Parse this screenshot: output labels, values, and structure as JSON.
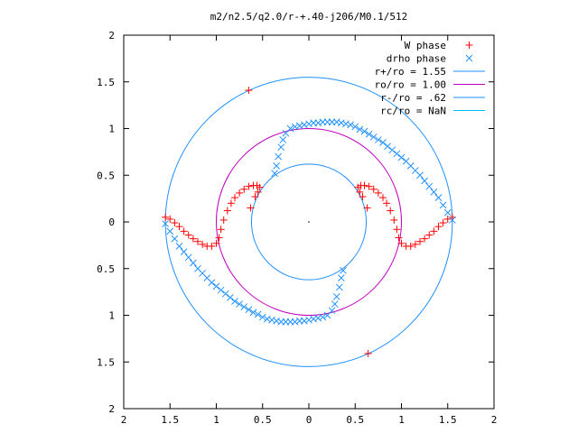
{
  "chart_data": {
    "type": "scatter",
    "title": "m2/n2.5/q2.0/r-+.40-j206/M0.1/512",
    "xlabel": "",
    "ylabel": "",
    "xlim": [
      -2,
      2
    ],
    "ylim": [
      -2,
      2
    ],
    "grid": false,
    "legend_position": "top-right",
    "x_tick_labels": [
      "2",
      "1.5",
      "1",
      "0.5",
      "0",
      "0.5",
      "1",
      "1.5",
      "2"
    ],
    "y_tick_labels": [
      "2",
      "1.5",
      "1",
      "0.5",
      "0",
      "0.5",
      "1",
      "1.5",
      "2"
    ],
    "series": [
      {
        "name": "W phase",
        "marker": "plus",
        "color": "#ff0000",
        "points": [
          [
            -1.55,
            0.05
          ],
          [
            -1.5,
            0.03
          ],
          [
            -1.45,
            -0.01
          ],
          [
            -1.4,
            -0.05
          ],
          [
            -1.35,
            -0.1
          ],
          [
            -1.3,
            -0.14
          ],
          [
            -1.25,
            -0.18
          ],
          [
            -1.2,
            -0.21
          ],
          [
            -1.15,
            -0.24
          ],
          [
            -1.1,
            -0.26
          ],
          [
            -1.05,
            -0.26
          ],
          [
            -1.0,
            -0.23
          ],
          [
            -0.97,
            -0.17
          ],
          [
            -0.95,
            -0.08
          ],
          [
            -0.92,
            0.02
          ],
          [
            -0.88,
            0.12
          ],
          [
            -0.84,
            0.2
          ],
          [
            -0.8,
            0.26
          ],
          [
            -0.75,
            0.31
          ],
          [
            -0.7,
            0.35
          ],
          [
            -0.65,
            0.38
          ],
          [
            -0.6,
            0.39
          ],
          [
            -0.56,
            0.39
          ],
          [
            -0.53,
            0.37
          ],
          [
            -0.55,
            0.32
          ],
          [
            -0.58,
            0.27
          ],
          [
            -0.63,
            0.15
          ],
          [
            1.55,
            0.05
          ],
          [
            1.5,
            0.03
          ],
          [
            1.45,
            -0.01
          ],
          [
            1.4,
            -0.05
          ],
          [
            1.35,
            -0.1
          ],
          [
            1.3,
            -0.14
          ],
          [
            1.25,
            -0.18
          ],
          [
            1.2,
            -0.21
          ],
          [
            1.15,
            -0.24
          ],
          [
            1.1,
            -0.26
          ],
          [
            1.05,
            -0.26
          ],
          [
            1.0,
            -0.23
          ],
          [
            0.97,
            -0.17
          ],
          [
            0.95,
            -0.08
          ],
          [
            0.92,
            0.02
          ],
          [
            0.88,
            0.12
          ],
          [
            0.84,
            0.2
          ],
          [
            0.8,
            0.26
          ],
          [
            0.75,
            0.31
          ],
          [
            0.7,
            0.35
          ],
          [
            0.65,
            0.38
          ],
          [
            0.6,
            0.39
          ],
          [
            0.56,
            0.39
          ],
          [
            0.53,
            0.37
          ],
          [
            0.55,
            0.32
          ],
          [
            0.58,
            0.27
          ],
          [
            0.63,
            0.15
          ],
          [
            -0.65,
            1.41
          ],
          [
            0.64,
            -1.41
          ]
        ]
      },
      {
        "name": "drho phase",
        "marker": "cross",
        "color": "#1e90ff",
        "points": [
          [
            -1.55,
            -0.02
          ],
          [
            -1.5,
            -0.1
          ],
          [
            -1.45,
            -0.18
          ],
          [
            -1.4,
            -0.26
          ],
          [
            -1.35,
            -0.32
          ],
          [
            -1.3,
            -0.38
          ],
          [
            -1.25,
            -0.44
          ],
          [
            -1.2,
            -0.5
          ],
          [
            -1.15,
            -0.55
          ],
          [
            -1.1,
            -0.6
          ],
          [
            -1.05,
            -0.65
          ],
          [
            -1.0,
            -0.69
          ],
          [
            -0.95,
            -0.73
          ],
          [
            -0.9,
            -0.77
          ],
          [
            -0.85,
            -0.81
          ],
          [
            -0.8,
            -0.85
          ],
          [
            -0.75,
            -0.88
          ],
          [
            -0.7,
            -0.91
          ],
          [
            -0.65,
            -0.94
          ],
          [
            -0.6,
            -0.97
          ],
          [
            -0.55,
            -0.99
          ],
          [
            -0.5,
            -1.02
          ],
          [
            -0.45,
            -1.04
          ],
          [
            -0.4,
            -1.05
          ],
          [
            -0.35,
            -1.06
          ],
          [
            -0.3,
            -1.07
          ],
          [
            -0.25,
            -1.07
          ],
          [
            -0.2,
            -1.07
          ],
          [
            -0.15,
            -1.07
          ],
          [
            -0.1,
            -1.06
          ],
          [
            -0.05,
            -1.06
          ],
          [
            0.0,
            -1.05
          ],
          [
            0.05,
            -1.04
          ],
          [
            0.1,
            -1.03
          ],
          [
            0.15,
            -1.02
          ],
          [
            0.2,
            -1.0
          ],
          [
            0.25,
            -0.95
          ],
          [
            0.28,
            -0.88
          ],
          [
            0.3,
            -0.8
          ],
          [
            0.33,
            -0.7
          ],
          [
            0.35,
            -0.6
          ],
          [
            0.37,
            -0.52
          ],
          [
            1.55,
            0.02
          ],
          [
            1.5,
            0.1
          ],
          [
            1.45,
            0.18
          ],
          [
            1.4,
            0.26
          ],
          [
            1.35,
            0.32
          ],
          [
            1.3,
            0.38
          ],
          [
            1.25,
            0.44
          ],
          [
            1.2,
            0.5
          ],
          [
            1.15,
            0.55
          ],
          [
            1.1,
            0.6
          ],
          [
            1.05,
            0.65
          ],
          [
            1.0,
            0.69
          ],
          [
            0.95,
            0.73
          ],
          [
            0.9,
            0.77
          ],
          [
            0.85,
            0.81
          ],
          [
            0.8,
            0.85
          ],
          [
            0.75,
            0.88
          ],
          [
            0.7,
            0.91
          ],
          [
            0.65,
            0.94
          ],
          [
            0.6,
            0.97
          ],
          [
            0.55,
            0.99
          ],
          [
            0.5,
            1.02
          ],
          [
            0.45,
            1.04
          ],
          [
            0.4,
            1.05
          ],
          [
            0.35,
            1.06
          ],
          [
            0.3,
            1.07
          ],
          [
            0.25,
            1.07
          ],
          [
            0.2,
            1.07
          ],
          [
            0.15,
            1.07
          ],
          [
            0.1,
            1.06
          ],
          [
            0.05,
            1.06
          ],
          [
            0.0,
            1.05
          ],
          [
            -0.05,
            1.04
          ],
          [
            -0.1,
            1.03
          ],
          [
            -0.15,
            1.02
          ],
          [
            -0.2,
            1.0
          ],
          [
            -0.25,
            0.95
          ],
          [
            -0.28,
            0.88
          ],
          [
            -0.3,
            0.8
          ],
          [
            -0.33,
            0.7
          ],
          [
            -0.35,
            0.6
          ],
          [
            -0.37,
            0.52
          ]
        ]
      },
      {
        "name": "r+/ro = 1.55",
        "type": "circle",
        "radius": 1.55,
        "color": "#1e90ff"
      },
      {
        "name": "ro/ro = 1.00",
        "type": "circle",
        "radius": 1.0,
        "color": "#c000c0"
      },
      {
        "name": "r-/ro = .62",
        "type": "circle",
        "radius": 0.62,
        "color": "#1e90ff"
      },
      {
        "name": "rc/ro = NaN",
        "type": "circle",
        "radius": null,
        "color": "#00bfff"
      }
    ]
  }
}
